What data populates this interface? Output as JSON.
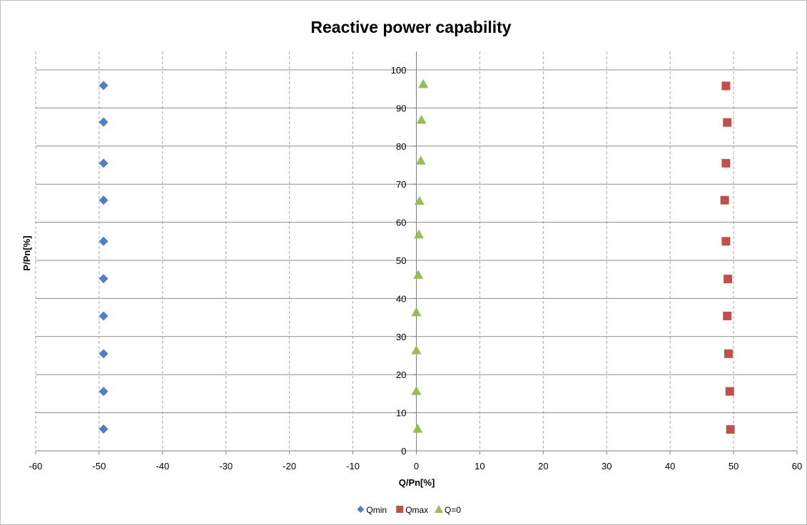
{
  "chart_data": {
    "type": "scatter",
    "title": "Reactive power capability",
    "xlabel": "Q/Pn[%]",
    "ylabel": "P/Pn[%]",
    "xlim": [
      -60,
      60
    ],
    "ylim": [
      0,
      100
    ],
    "xticks": [
      -60,
      -50,
      -40,
      -30,
      -20,
      -10,
      0,
      10,
      20,
      30,
      40,
      50,
      60
    ],
    "yticks": [
      0,
      10,
      20,
      30,
      40,
      50,
      60,
      70,
      80,
      90,
      100
    ],
    "grid": {
      "x": "dashed",
      "y": "solid"
    },
    "legend_position": "bottom",
    "series": [
      {
        "name": "Qmin",
        "marker": "diamond",
        "color": "#4f81bd",
        "points": [
          [
            -49.3,
            5.7
          ],
          [
            -49.3,
            15.6
          ],
          [
            -49.3,
            25.5
          ],
          [
            -49.3,
            35.4
          ],
          [
            -49.3,
            45.2
          ],
          [
            -49.3,
            55.0
          ],
          [
            -49.3,
            65.8
          ],
          [
            -49.3,
            75.5
          ],
          [
            -49.3,
            86.3
          ],
          [
            -49.3,
            95.9
          ]
        ]
      },
      {
        "name": "Qmax",
        "marker": "square",
        "color": "#c0504d",
        "points": [
          [
            49.5,
            5.6
          ],
          [
            49.4,
            15.6
          ],
          [
            49.2,
            25.5
          ],
          [
            49.0,
            35.4
          ],
          [
            49.1,
            45.1
          ],
          [
            48.8,
            55.0
          ],
          [
            48.6,
            65.8
          ],
          [
            48.8,
            75.5
          ],
          [
            49.0,
            86.2
          ],
          [
            48.8,
            95.8
          ]
        ]
      },
      {
        "name": "Q=0",
        "marker": "triangle",
        "color": "#9bbb59",
        "points": [
          [
            0.2,
            5.8
          ],
          [
            0.0,
            15.7
          ],
          [
            0.0,
            26.4
          ],
          [
            0.0,
            36.4
          ],
          [
            0.3,
            46.2
          ],
          [
            0.4,
            56.8
          ],
          [
            0.5,
            65.6
          ],
          [
            0.7,
            76.2
          ],
          [
            0.8,
            86.9
          ],
          [
            1.1,
            96.3
          ]
        ]
      }
    ]
  }
}
